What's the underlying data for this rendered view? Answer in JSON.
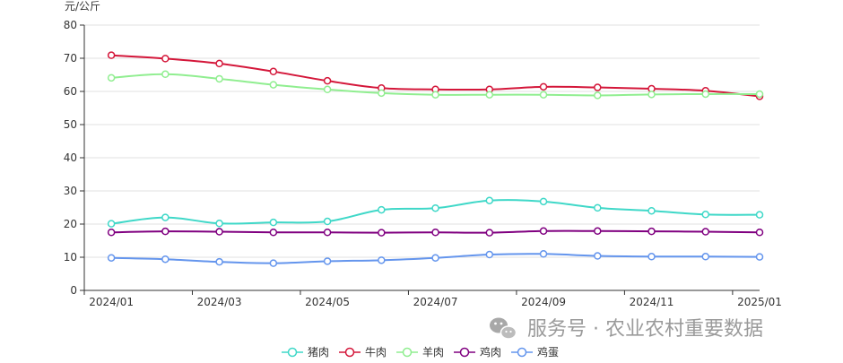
{
  "chart_data": {
    "type": "line",
    "y_unit": "元/公斤",
    "ylim": [
      0,
      80
    ],
    "y_ticks": [
      "0",
      "10",
      "20",
      "30",
      "40",
      "50",
      "60",
      "70",
      "80"
    ],
    "x_tick_labels": [
      "2024/01",
      "2024/03",
      "2024/05",
      "2024/07",
      "2024/09",
      "2024/11",
      "2025/01"
    ],
    "x": [
      "2024/01",
      "2024/02",
      "2024/03",
      "2024/04",
      "2024/05",
      "2024/06",
      "2024/07",
      "2024/08",
      "2024/09",
      "2024/10",
      "2024/11",
      "2024/12",
      "2025/01"
    ],
    "grid": true,
    "legend_position": "bottom",
    "series": [
      {
        "name": "猪肉",
        "color": "#3fd8c8",
        "values": [
          20.1,
          22.0,
          20.2,
          20.5,
          20.8,
          24.3,
          24.8,
          27.1,
          26.8,
          24.9,
          24.0,
          22.9,
          22.8
        ]
      },
      {
        "name": "牛肉",
        "color": "#d4173a",
        "values": [
          70.9,
          69.9,
          68.4,
          66.0,
          63.2,
          61.0,
          60.6,
          60.6,
          61.4,
          61.2,
          60.8,
          60.2,
          58.5
        ]
      },
      {
        "name": "羊肉",
        "color": "#90ee90",
        "values": [
          64.1,
          65.2,
          63.8,
          62.0,
          60.6,
          59.5,
          59.0,
          59.0,
          59.0,
          58.8,
          59.1,
          59.2,
          59.2
        ]
      },
      {
        "name": "鸡肉",
        "color": "#800080",
        "values": [
          17.5,
          17.8,
          17.7,
          17.5,
          17.5,
          17.4,
          17.5,
          17.4,
          17.9,
          17.9,
          17.8,
          17.7,
          17.5
        ]
      },
      {
        "name": "鸡蛋",
        "color": "#6495ed",
        "values": [
          9.8,
          9.4,
          8.6,
          8.2,
          8.8,
          9.1,
          9.8,
          10.8,
          11.0,
          10.4,
          10.2,
          10.2,
          10.1
        ]
      }
    ]
  },
  "watermark": {
    "text": "服务号 · 农业农村重要数据",
    "icon": "wechat-icon"
  }
}
